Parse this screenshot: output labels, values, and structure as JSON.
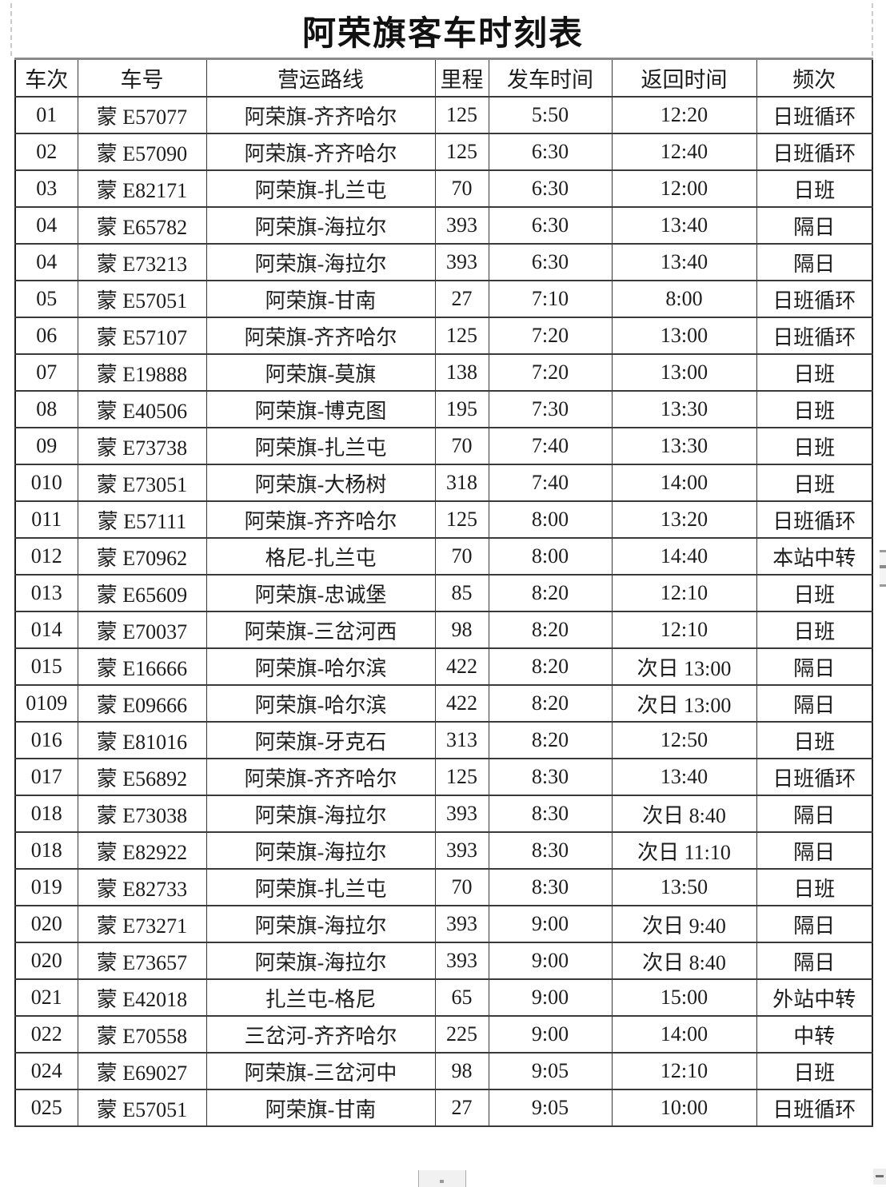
{
  "page": {
    "title": "阿荣旗客车时刻表"
  },
  "table": {
    "headers": [
      "车次",
      "车号",
      "营运路线",
      "里程",
      "发车时间",
      "返回时间",
      "频次"
    ],
    "rows": [
      [
        "01",
        "蒙 E57077",
        "阿荣旗-齐齐哈尔",
        "125",
        "5:50",
        "12:20",
        "日班循环"
      ],
      [
        "02",
        "蒙 E57090",
        "阿荣旗-齐齐哈尔",
        "125",
        "6:30",
        "12:40",
        "日班循环"
      ],
      [
        "03",
        "蒙 E82171",
        "阿荣旗-扎兰屯",
        "70",
        "6:30",
        "12:00",
        "日班"
      ],
      [
        "04",
        "蒙 E65782",
        "阿荣旗-海拉尔",
        "393",
        "6:30",
        "13:40",
        "隔日"
      ],
      [
        "04",
        "蒙 E73213",
        "阿荣旗-海拉尔",
        "393",
        "6:30",
        "13:40",
        "隔日"
      ],
      [
        "05",
        "蒙 E57051",
        "阿荣旗-甘南",
        "27",
        "7:10",
        "8:00",
        "日班循环"
      ],
      [
        "06",
        "蒙 E57107",
        "阿荣旗-齐齐哈尔",
        "125",
        "7:20",
        "13:00",
        "日班循环"
      ],
      [
        "07",
        "蒙 E19888",
        "阿荣旗-莫旗",
        "138",
        "7:20",
        "13:00",
        "日班"
      ],
      [
        "08",
        "蒙 E40506",
        "阿荣旗-博克图",
        "195",
        "7:30",
        "13:30",
        "日班"
      ],
      [
        "09",
        "蒙 E73738",
        "阿荣旗-扎兰屯",
        "70",
        "7:40",
        "13:30",
        "日班"
      ],
      [
        "010",
        "蒙 E73051",
        "阿荣旗-大杨树",
        "318",
        "7:40",
        "14:00",
        "日班"
      ],
      [
        "011",
        "蒙 E57111",
        "阿荣旗-齐齐哈尔",
        "125",
        "8:00",
        "13:20",
        "日班循环"
      ],
      [
        "012",
        "蒙 E70962",
        "格尼-扎兰屯",
        "70",
        "8:00",
        "14:40",
        "本站中转"
      ],
      [
        "013",
        "蒙 E65609",
        "阿荣旗-忠诚堡",
        "85",
        "8:20",
        "12:10",
        "日班"
      ],
      [
        "014",
        "蒙 E70037",
        "阿荣旗-三岔河西",
        "98",
        "8:20",
        "12:10",
        "日班"
      ],
      [
        "015",
        "蒙 E16666",
        "阿荣旗-哈尔滨",
        "422",
        "8:20",
        "次日 13:00",
        "隔日"
      ],
      [
        "0109",
        "蒙 E09666",
        "阿荣旗-哈尔滨",
        "422",
        "8:20",
        "次日 13:00",
        "隔日"
      ],
      [
        "016",
        "蒙 E81016",
        "阿荣旗-牙克石",
        "313",
        "8:20",
        "12:50",
        "日班"
      ],
      [
        "017",
        "蒙 E56892",
        "阿荣旗-齐齐哈尔",
        "125",
        "8:30",
        "13:40",
        "日班循环"
      ],
      [
        "018",
        "蒙 E73038",
        "阿荣旗-海拉尔",
        "393",
        "8:30",
        "次日 8:40",
        "隔日"
      ],
      [
        "018",
        "蒙 E82922",
        "阿荣旗-海拉尔",
        "393",
        "8:30",
        "次日 11:10",
        "隔日"
      ],
      [
        "019",
        "蒙 E82733",
        "阿荣旗-扎兰屯",
        "70",
        "8:30",
        "13:50",
        "日班"
      ],
      [
        "020",
        "蒙 E73271",
        "阿荣旗-海拉尔",
        "393",
        "9:00",
        "次日 9:40",
        "隔日"
      ],
      [
        "020",
        "蒙 E73657",
        "阿荣旗-海拉尔",
        "393",
        "9:00",
        "次日 8:40",
        "隔日"
      ],
      [
        "021",
        "蒙 E42018",
        "扎兰屯-格尼",
        "65",
        "9:00",
        "15:00",
        "外站中转"
      ],
      [
        "022",
        "蒙 E70558",
        "三岔河-齐齐哈尔",
        "225",
        "9:00",
        "14:00",
        "中转"
      ],
      [
        "024",
        "蒙 E69027",
        "阿荣旗-三岔河中",
        "98",
        "9:05",
        "12:10",
        "日班"
      ],
      [
        "025",
        "蒙 E57051",
        "阿荣旗-甘南",
        "27",
        "9:05",
        "10:00",
        "日班循环"
      ]
    ]
  },
  "colors": {
    "background": "#ffffff",
    "text": "#1c1c1c",
    "border": "#3a3a3a",
    "guide": "#cccccc"
  }
}
